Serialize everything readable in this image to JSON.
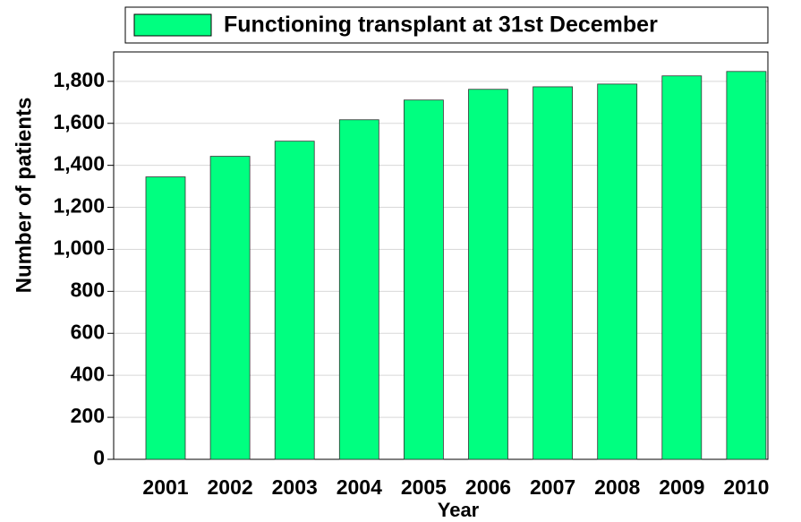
{
  "chart_data": {
    "type": "bar",
    "legend": "Functioning transplant at 31st December",
    "y_label": "Number of patients",
    "x_label": "Year",
    "categories": [
      "2001",
      "2002",
      "2003",
      "2004",
      "2005",
      "2006",
      "2007",
      "2008",
      "2009",
      "2010"
    ],
    "values": [
      1345,
      1443,
      1515,
      1617,
      1711,
      1762,
      1774,
      1787,
      1826,
      1847
    ],
    "color": "#00ff80",
    "ylim": [
      0,
      1940
    ],
    "yticks": [
      0,
      200,
      400,
      600,
      800,
      {
        "value": 1000,
        "label": "1,000"
      },
      {
        "value": 1200,
        "label": "1,200"
      },
      {
        "value": 1400,
        "label": "1,400"
      },
      {
        "value": 1600,
        "label": "1,600"
      },
      {
        "value": 1800,
        "label": "1,800"
      }
    ],
    "grid": true
  }
}
